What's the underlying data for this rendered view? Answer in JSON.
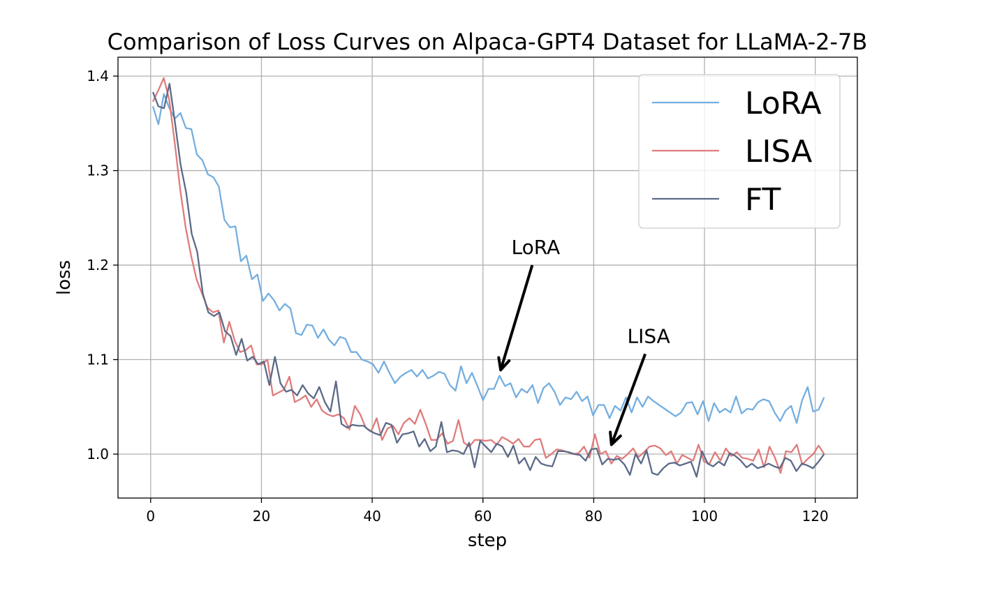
{
  "chart_data": {
    "type": "line",
    "title": "Comparison of Loss Curves on Alpaca-GPT4 Dataset for LLaMA-2-7B",
    "xlabel": "step",
    "ylabel": "loss",
    "xlim": [
      -5.9,
      127.6
    ],
    "ylim": [
      0.9535,
      1.42
    ],
    "xticks": [
      0,
      20,
      40,
      60,
      80,
      100,
      120
    ],
    "yticks": [
      1.0,
      1.1,
      1.2,
      1.3,
      1.4
    ],
    "ytick_labels": [
      "1.0",
      "1.1",
      "1.2",
      "1.3",
      "1.4"
    ],
    "grid": true,
    "legend_position": "top-right",
    "x_start": 0.4,
    "x_end": 121.6,
    "series": [
      {
        "name": "LoRA",
        "color": "#74aee0",
        "values": [
          1.368,
          1.349,
          1.381,
          1.366,
          1.355,
          1.361,
          1.345,
          1.344,
          1.317,
          1.311,
          1.296,
          1.293,
          1.283,
          1.248,
          1.24,
          1.241,
          1.204,
          1.21,
          1.185,
          1.19,
          1.162,
          1.17,
          1.163,
          1.152,
          1.159,
          1.154,
          1.128,
          1.126,
          1.137,
          1.136,
          1.123,
          1.132,
          1.121,
          1.115,
          1.124,
          1.122,
          1.108,
          1.108,
          1.1,
          1.098,
          1.095,
          1.086,
          1.098,
          1.086,
          1.075,
          1.082,
          1.086,
          1.089,
          1.082,
          1.089,
          1.08,
          1.083,
          1.087,
          1.085,
          1.073,
          1.067,
          1.093,
          1.075,
          1.086,
          1.072,
          1.057,
          1.069,
          1.069,
          1.083,
          1.072,
          1.075,
          1.06,
          1.069,
          1.065,
          1.073,
          1.054,
          1.07,
          1.075,
          1.066,
          1.052,
          1.06,
          1.058,
          1.066,
          1.056,
          1.061,
          1.041,
          1.052,
          1.052,
          1.038,
          1.051,
          1.046,
          1.06,
          1.044,
          1.06,
          1.05,
          1.061,
          1.056,
          1.052,
          1.048,
          1.044,
          1.04,
          1.044,
          1.054,
          1.055,
          1.042,
          1.056,
          1.035,
          1.054,
          1.044,
          1.048,
          1.044,
          1.061,
          1.043,
          1.048,
          1.047,
          1.055,
          1.058,
          1.056,
          1.044,
          1.035,
          1.046,
          1.051,
          1.033,
          1.057,
          1.071,
          1.045,
          1.047,
          1.06
        ]
      },
      {
        "name": "LISA",
        "color": "#e07b7b",
        "values": [
          1.373,
          1.385,
          1.398,
          1.375,
          1.33,
          1.28,
          1.24,
          1.21,
          1.185,
          1.17,
          1.155,
          1.15,
          1.152,
          1.118,
          1.14,
          1.12,
          1.108,
          1.11,
          1.115,
          1.095,
          1.095,
          1.1,
          1.062,
          1.065,
          1.068,
          1.082,
          1.055,
          1.058,
          1.062,
          1.05,
          1.058,
          1.046,
          1.042,
          1.04,
          1.042,
          1.038,
          1.026,
          1.051,
          1.042,
          1.028,
          1.024,
          1.038,
          1.015,
          1.027,
          1.03,
          1.021,
          1.033,
          1.038,
          1.032,
          1.047,
          1.032,
          1.015,
          1.015,
          1.022,
          1.011,
          1.014,
          1.036,
          1.012,
          1.008,
          1.015,
          1.015,
          1.014,
          1.015,
          1.01,
          1.018,
          1.015,
          1.011,
          1.016,
          1.008,
          1.008,
          1.015,
          1.016,
          0.996,
          1.0,
          1.005,
          1.004,
          1.002,
          1.0,
          1.001,
          1.008,
          0.996,
          1.021,
          1.0,
          1.003,
          0.99,
          0.998,
          0.995,
          1.0,
          1.006,
          0.997,
          1.002,
          1.008,
          1.009,
          1.006,
          0.999,
          1.003,
          0.99,
          0.999,
          0.996,
          0.993,
          1.01,
          0.992,
          0.99,
          1.002,
          0.993,
          1.006,
          0.998,
          1.002,
          0.996,
          0.995,
          0.993,
          1.005,
          0.986,
          1.008,
          0.996,
          0.98,
          1.003,
          1.002,
          1.01,
          0.989,
          0.995,
          1.0,
          1.009,
          1.0
        ]
      },
      {
        "name": "FT",
        "color": "#5b6a88",
        "values": [
          1.383,
          1.368,
          1.366,
          1.392,
          1.35,
          1.306,
          1.277,
          1.233,
          1.214,
          1.17,
          1.15,
          1.146,
          1.15,
          1.13,
          1.125,
          1.105,
          1.122,
          1.099,
          1.103,
          1.095,
          1.098,
          1.073,
          1.103,
          1.075,
          1.066,
          1.068,
          1.062,
          1.073,
          1.064,
          1.059,
          1.071,
          1.055,
          1.045,
          1.077,
          1.032,
          1.028,
          1.031,
          1.03,
          1.03,
          1.025,
          1.022,
          1.02,
          1.033,
          1.031,
          1.012,
          1.021,
          1.022,
          1.024,
          1.008,
          1.016,
          1.003,
          1.008,
          1.034,
          1.002,
          1.004,
          1.003,
          1.0,
          1.012,
          0.986,
          1.014,
          1.008,
          1.002,
          1.011,
          1.008,
          0.997,
          1.009,
          0.99,
          0.996,
          0.983,
          0.997,
          0.99,
          0.988,
          0.987,
          1.003,
          1.003,
          1.002,
          1.0,
          0.999,
          0.993,
          1.005,
          1.006,
          0.989,
          0.995,
          0.994,
          0.995,
          0.989,
          0.978,
          1.0,
          0.99,
          1.004,
          0.98,
          0.978,
          0.985,
          0.99,
          0.991,
          0.988,
          0.99,
          0.992,
          0.976,
          1.003,
          0.99,
          0.987,
          0.992,
          0.988,
          1.001,
          0.998,
          0.993,
          0.986,
          0.99,
          0.985,
          0.987,
          0.99,
          0.987,
          0.985,
          0.996,
          0.993,
          0.982,
          0.99,
          0.988,
          0.985,
          0.992,
          1.0
        ]
      }
    ],
    "annotations": [
      {
        "text": "LoRA",
        "xy": [
          63.2,
          1.089
        ],
        "xytext": [
          68.9,
          1.2
        ]
      },
      {
        "text": "LISA",
        "xy": [
          83.2,
          1.01
        ],
        "xytext": [
          89.3,
          1.106
        ]
      }
    ]
  }
}
